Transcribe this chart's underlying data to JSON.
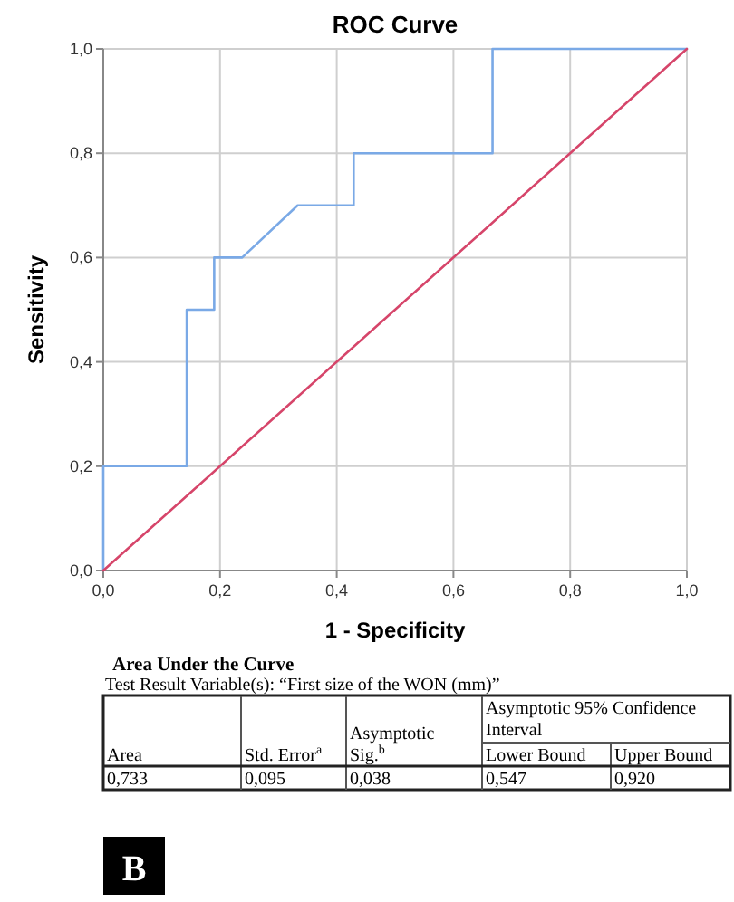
{
  "chart_data": {
    "type": "line",
    "title": "ROC Curve",
    "xlabel": "1 - Specificity",
    "ylabel": "Sensitivity",
    "xlim": [
      0,
      1
    ],
    "ylim": [
      0,
      1
    ],
    "xticks": [
      {
        "value": 0,
        "label": "0,0"
      },
      {
        "value": 0.2,
        "label": "0,2"
      },
      {
        "value": 0.4,
        "label": "0,4"
      },
      {
        "value": 0.6,
        "label": "0,6"
      },
      {
        "value": 0.8,
        "label": "0,8"
      },
      {
        "value": 1,
        "label": "1,0"
      }
    ],
    "yticks": [
      {
        "value": 0,
        "label": "0,0"
      },
      {
        "value": 0.2,
        "label": "0,2"
      },
      {
        "value": 0.4,
        "label": "0,4"
      },
      {
        "value": 0.6,
        "label": "0,6"
      },
      {
        "value": 0.8,
        "label": "0,8"
      },
      {
        "value": 1,
        "label": "1,0"
      }
    ],
    "grid": true,
    "marker": "none",
    "line_style": "solid",
    "series": [
      {
        "color": "#7aa9e6",
        "x": [
          0,
          0,
          0.143,
          0.143,
          0.19,
          0.19,
          0.238,
          0.333,
          0.429,
          0.429,
          0.667,
          0.667,
          1
        ],
        "values": [
          0,
          0.2,
          0.2,
          0.5,
          0.5,
          0.6,
          0.6,
          0.7,
          0.7,
          0.8,
          0.8,
          1,
          1
        ]
      },
      {
        "color": "#d6456a",
        "x": [
          0,
          1
        ],
        "values": [
          0,
          1
        ]
      }
    ],
    "annotations": [
      "Area Under the Curve",
      "Test Result Variable(s):  “First size of the WON (mm)”",
      "Area",
      "Std. Error$^{a}$",
      "Asymptotic Sig.$^{b}$",
      "Asymptotic 95% Confidence Interval",
      "Lower Bound",
      "Upper Bound",
      "0,733",
      "0,095",
      "0,038",
      "0,547",
      "0,920",
      "B"
    ]
  }
}
